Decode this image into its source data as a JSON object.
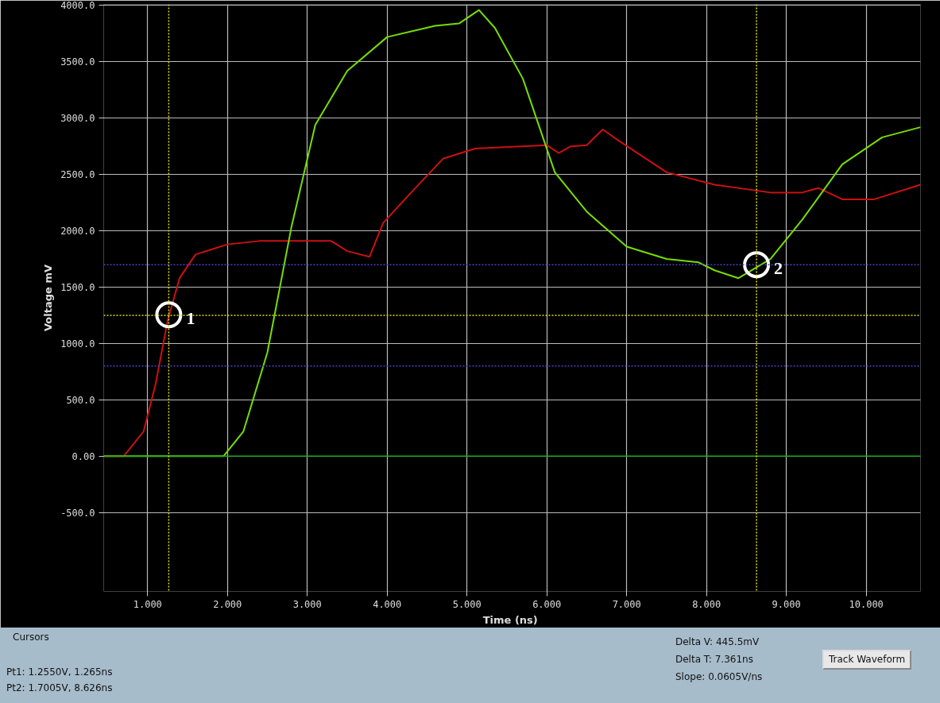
{
  "chart_data": {
    "type": "line",
    "xlabel": "Time  (ns)",
    "ylabel": "Voltage mV",
    "xlim": [
      0.45,
      10.68
    ],
    "ylim": [
      -1200,
      4010
    ],
    "xticks": [
      {
        "value": 1,
        "label": "1.000"
      },
      {
        "value": 2,
        "label": "2.000"
      },
      {
        "value": 3,
        "label": "3.000"
      },
      {
        "value": 4,
        "label": "4.000"
      },
      {
        "value": 5,
        "label": "5.000"
      },
      {
        "value": 6,
        "label": "6.000"
      },
      {
        "value": 7,
        "label": "7.000"
      },
      {
        "value": 8,
        "label": "8.000"
      },
      {
        "value": 9,
        "label": "9.000"
      },
      {
        "value": 10,
        "label": "10.000"
      }
    ],
    "yticks": [
      {
        "value": -500,
        "label": "-500.0"
      },
      {
        "value": 0,
        "label": "0.00"
      },
      {
        "value": 500,
        "label": "500.0"
      },
      {
        "value": 1000,
        "label": "1000.0"
      },
      {
        "value": 1500,
        "label": "1500.0"
      },
      {
        "value": 2000,
        "label": "2000.0"
      },
      {
        "value": 2500,
        "label": "2500.0"
      },
      {
        "value": 3000,
        "label": "3000.0"
      },
      {
        "value": 3500,
        "label": "3500.0"
      },
      {
        "value": 4000,
        "label": "4000.0"
      }
    ],
    "grid": true,
    "line_style": "solid",
    "marker": "none",
    "series": [
      {
        "color": "#cc1010",
        "x": [
          0.45,
          0.7,
          0.95,
          1.1,
          1.25,
          1.4,
          1.6,
          2.0,
          2.4,
          3.3,
          3.5,
          3.78,
          3.95,
          4.3,
          4.7,
          5.1,
          6.0,
          6.15,
          6.3,
          6.5,
          6.7,
          6.9,
          7.5,
          8.1,
          8.8,
          9.2,
          9.4,
          9.7,
          10.1,
          10.68
        ],
        "values": [
          0,
          0,
          220,
          640,
          1200,
          1580,
          1790,
          1880,
          1910,
          1910,
          1820,
          1770,
          2070,
          2340,
          2640,
          2730,
          2760,
          2690,
          2750,
          2760,
          2900,
          2800,
          2520,
          2410,
          2340,
          2340,
          2380,
          2280,
          2280,
          2410
        ]
      },
      {
        "color": "#77dd00",
        "x": [
          0.45,
          1.95,
          2.2,
          2.5,
          2.8,
          3.1,
          3.5,
          4.0,
          4.6,
          4.9,
          5.15,
          5.35,
          5.7,
          6.1,
          6.5,
          7.0,
          7.5,
          7.9,
          8.1,
          8.4,
          8.8,
          9.2,
          9.7,
          10.2,
          10.68
        ],
        "values": [
          0,
          0,
          220,
          920,
          2030,
          2940,
          3420,
          3720,
          3820,
          3840,
          3960,
          3800,
          3350,
          2520,
          2170,
          1860,
          1750,
          1720,
          1650,
          1580,
          1750,
          2100,
          2590,
          2830,
          2920
        ]
      }
    ],
    "ref_lines": [
      {
        "axis": "y",
        "value": 0,
        "color": "#22aa22",
        "line_style": "solid"
      },
      {
        "axis": "y",
        "value": 1700,
        "color": "#4444cc",
        "line_style": "dotted"
      },
      {
        "axis": "y",
        "value": 1250,
        "color": "#dddd22",
        "line_style": "dotted"
      },
      {
        "axis": "y",
        "value": 800,
        "color": "#4444cc",
        "line_style": "dotted"
      },
      {
        "axis": "x",
        "value": 1.265,
        "color": "#dddd22",
        "line_style": "dotted"
      },
      {
        "axis": "x",
        "value": 8.626,
        "color": "#dddd22",
        "line_style": "dotted"
      }
    ],
    "annotations": [
      {
        "text": "1",
        "x": 1.265,
        "y": 1255
      },
      {
        "text": "2",
        "x": 8.626,
        "y": 1700
      },
      "Cursors",
      "Pt1: 1.2550V, 1.265ns",
      "Pt2: 1.7005V, 8.626ns",
      "Delta V: 445.5mV",
      "Delta T: 7.361ns",
      "Slope: 0.0605V/ns",
      "Track Waveform"
    ]
  }
}
